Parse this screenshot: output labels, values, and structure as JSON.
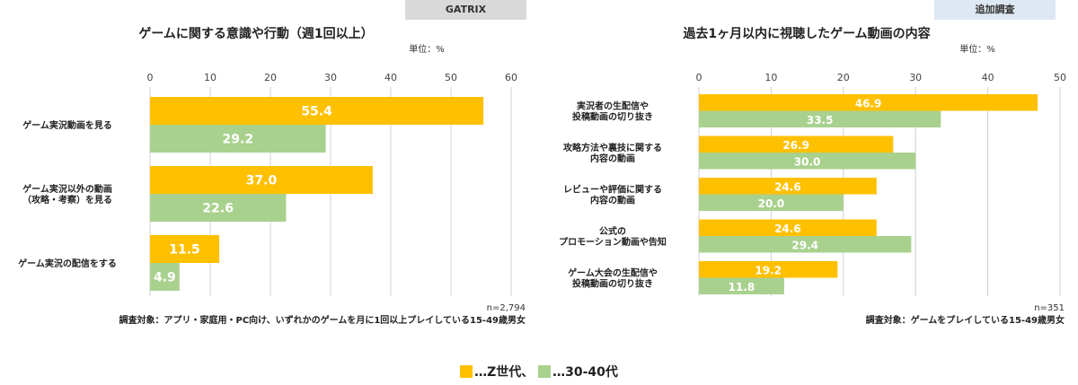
{
  "tags": {
    "left": "GATRIX",
    "right": "追加調査"
  },
  "colors": {
    "z": "#ffc000",
    "older": "#a9d18e",
    "grid": "#d0d0d0"
  },
  "chart_data": [
    {
      "type": "bar",
      "orientation": "horizontal",
      "title": "ゲームに関する意識や行動（週1回以上）",
      "unit": "単位：%",
      "xlim": [
        0,
        60
      ],
      "ticks": [
        0,
        10,
        20,
        30,
        40,
        50,
        60
      ],
      "categories": [
        [
          "ゲーム実況動画を見る"
        ],
        [
          "ゲーム実況以外の動画",
          "（攻略・考察）を見る"
        ],
        [
          "ゲーム実況の配信をする"
        ]
      ],
      "series": [
        {
          "name": "Z世代",
          "values": [
            55.4,
            37.0,
            11.5
          ],
          "labels": [
            "55.4",
            "37.0",
            "11.5"
          ]
        },
        {
          "name": "30-40代",
          "values": [
            29.2,
            22.6,
            4.9
          ],
          "labels": [
            "29.2",
            "22.6",
            "4.9"
          ]
        }
      ],
      "n": "n=2,794",
      "note": "調査対象：アプリ・家庭用・PC向け、いずれかのゲームを月に1回以上プレイしている15-49歳男女"
    },
    {
      "type": "bar",
      "orientation": "horizontal",
      "title": "過去1ヶ月以内に視聴したゲーム動画の内容",
      "unit": "単位：%",
      "xlim": [
        0,
        50
      ],
      "ticks": [
        0,
        10,
        20,
        30,
        40,
        50
      ],
      "categories": [
        [
          "実況者の生配信や",
          "投稿動画の切り抜き"
        ],
        [
          "攻略方法や裏技に関する",
          "内容の動画"
        ],
        [
          "レビューや評価に関する",
          "内容の動画"
        ],
        [
          "公式の",
          "プロモーション動画や告知"
        ],
        [
          "ゲーム大会の生配信や",
          "投稿動画の切り抜き"
        ]
      ],
      "series": [
        {
          "name": "Z世代",
          "values": [
            46.9,
            26.9,
            24.6,
            24.6,
            19.2
          ],
          "labels": [
            "46.9",
            "26.9",
            "24.6",
            "24.6",
            "19.2"
          ]
        },
        {
          "name": "30-40代",
          "values": [
            33.5,
            30.0,
            20.0,
            29.4,
            11.8
          ],
          "labels": [
            "33.5",
            "30.0",
            "20.0",
            "29.4",
            "11.8"
          ]
        }
      ],
      "n": "n=351",
      "note": "調査対象：ゲームをプレイしている15-49歳男女"
    }
  ],
  "legend": [
    {
      "label": "…Z世代、"
    },
    {
      "label": "…30-40代"
    }
  ]
}
